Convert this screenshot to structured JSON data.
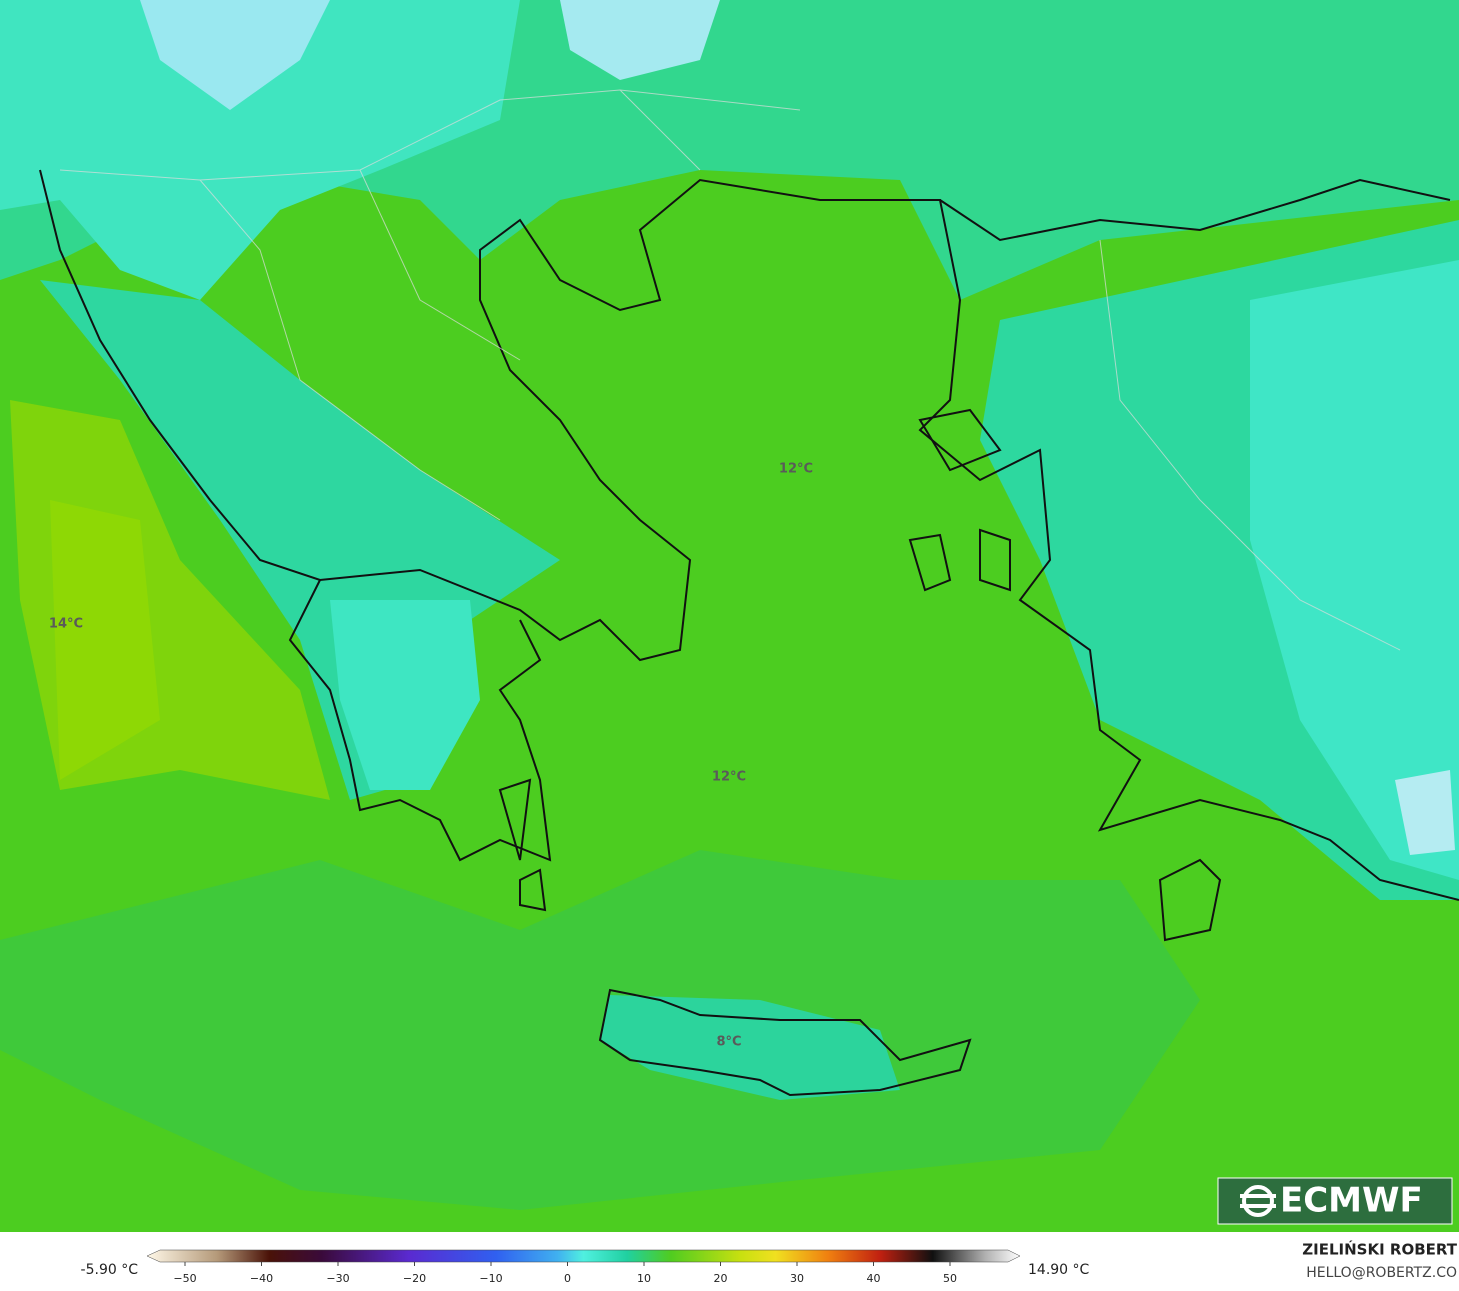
{
  "map_labels": [
    "14°C",
    "12°C",
    "12°C",
    "8°C"
  ],
  "colorbar": {
    "min_label": "-5.90 °C",
    "max_label": "14.90 °C",
    "ticks": [
      {
        "value": -50,
        "label": "−50"
      },
      {
        "value": -40,
        "label": "−40"
      },
      {
        "value": -30,
        "label": "−30"
      },
      {
        "value": -20,
        "label": "−20"
      },
      {
        "value": -10,
        "label": "−10"
      },
      0,
      10,
      20,
      30,
      40,
      50
    ]
  },
  "logo": "ECMWF",
  "credits": {
    "author": "ZIELIŃSKI ROBERT",
    "contact": "HELLO@ROBERTZ.CO"
  }
}
